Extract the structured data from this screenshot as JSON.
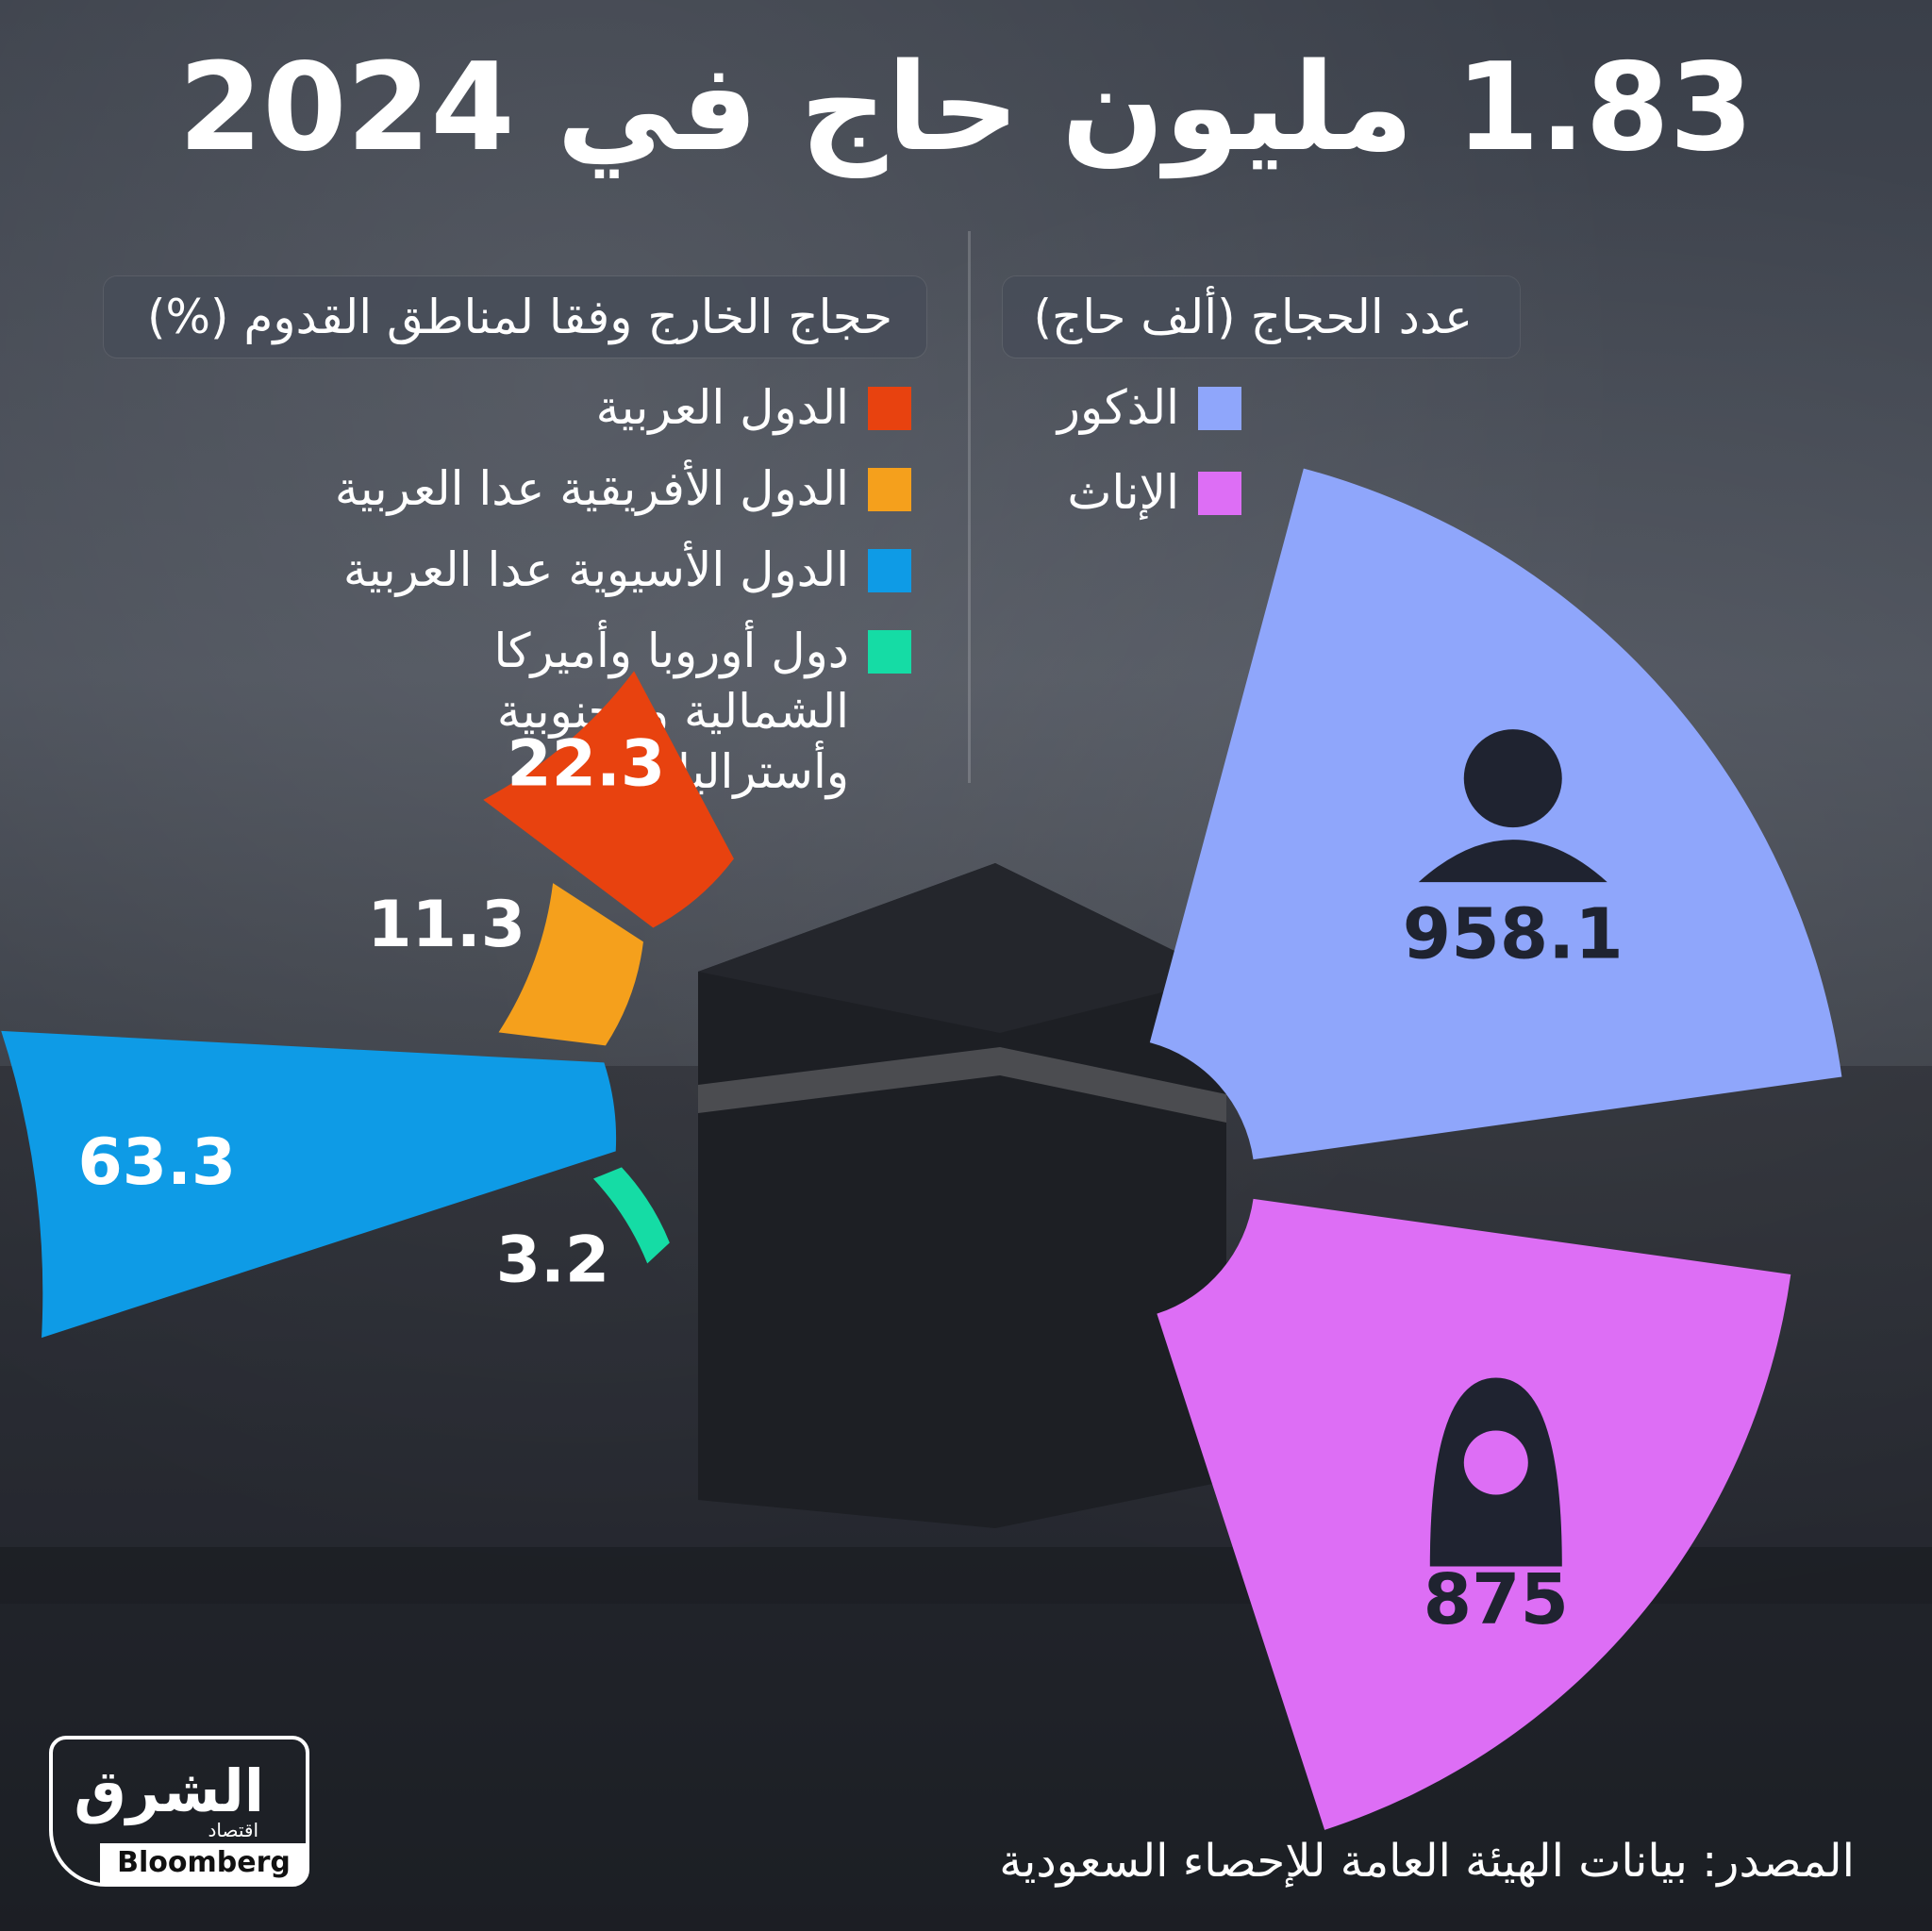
{
  "title": "1.83 مليون حاج في 2024",
  "headers": {
    "gender": "عدد الحجاج (ألف حاج)",
    "regions": "حجاج الخارج وفقا لمناطق القدوم (%)"
  },
  "gender_legend": [
    {
      "label": "الذكور",
      "color": "#8fa6fb"
    },
    {
      "label": "الإناث",
      "color": "#dd6ef5"
    }
  ],
  "region_legend": [
    {
      "label": "الدول العربية",
      "color": "#e8420f"
    },
    {
      "label": "الدول الأفريقية عدا العربية",
      "color": "#f5a01c"
    },
    {
      "label": "الدول الأسيوية عدا العربية",
      "color": "#0e9be6"
    },
    {
      "label": "دول أوروبا وأميركا الشمالية والجنوبية وأستراليا",
      "color": "#15dca5"
    }
  ],
  "source": "المصدر: بيانات الهيئة العامة للإحصاء السعودية",
  "logo": {
    "arabic": "الشرق",
    "sub": "اقتصاد",
    "partner": "Bloomberg"
  },
  "chart_data": [
    {
      "type": "radial-bar",
      "title": "عدد الحجاج (ألف حاج)",
      "unit": "ألف حاج",
      "categories": [
        "الذكور",
        "الإناث"
      ],
      "values": [
        958.1,
        875
      ],
      "labels": [
        "958.1",
        "875"
      ],
      "icons": [
        "man-icon",
        "woman-icon"
      ],
      "colors": [
        "#8fa6fb",
        "#dd6ef5"
      ]
    },
    {
      "type": "radial-bar",
      "title": "حجاج الخارج وفقا لمناطق القدوم (%)",
      "unit": "%",
      "categories": [
        "الدول العربية",
        "الدول الأفريقية عدا العربية",
        "الدول الأسيوية عدا العربية",
        "دول أوروبا وأميركا الشمالية والجنوبية وأستراليا"
      ],
      "values": [
        22.3,
        11.3,
        63.3,
        3.2
      ],
      "labels": [
        "22.3",
        "11.3",
        "63.3",
        "3.2"
      ],
      "colors": [
        "#e8420f",
        "#f5a01c",
        "#0e9be6",
        "#15dca5"
      ]
    }
  ]
}
